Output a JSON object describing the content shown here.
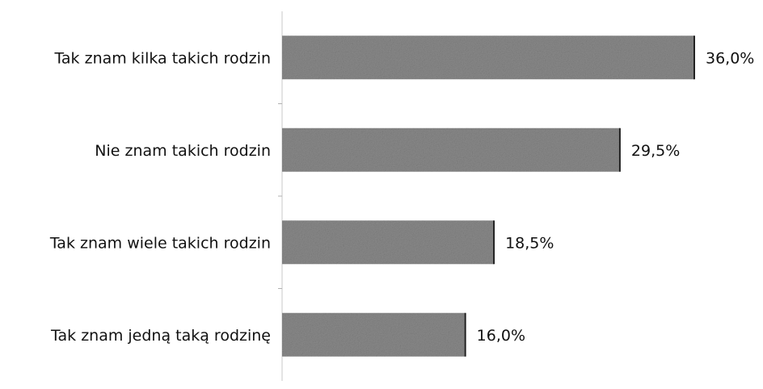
{
  "chart_data": {
    "type": "bar",
    "orientation": "horizontal",
    "categories": [
      "Tak znam kilka takich rodzin",
      "Nie znam takich rodzin",
      "Tak znam wiele takich rodzin",
      "Tak znam jedną taką rodzinę"
    ],
    "values": [
      36.0,
      29.5,
      18.5,
      16.0
    ],
    "data_labels": [
      "36,0%",
      "29,5%",
      "18,5%",
      "16,0%"
    ],
    "unit": "%",
    "xlim": [
      0,
      36.0
    ],
    "grid": false,
    "legend": "none",
    "bar_color": "#8a8a8a"
  }
}
